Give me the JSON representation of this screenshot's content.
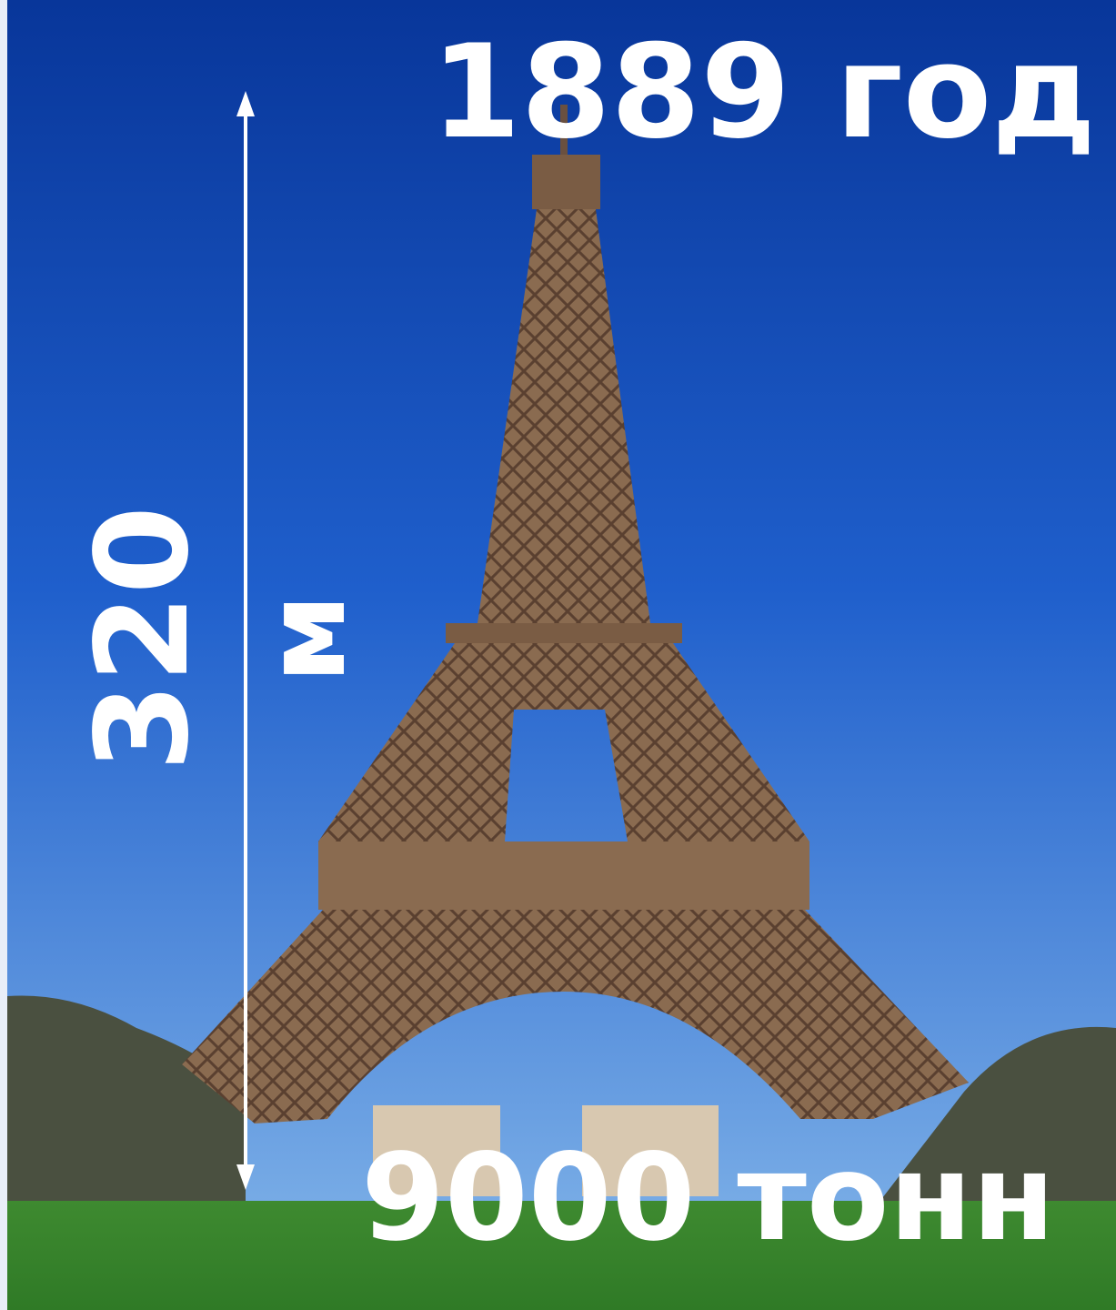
{
  "overlay": {
    "year": "1889 год",
    "height_number": "320",
    "height_unit": "м",
    "weight": "9000 тонн"
  }
}
